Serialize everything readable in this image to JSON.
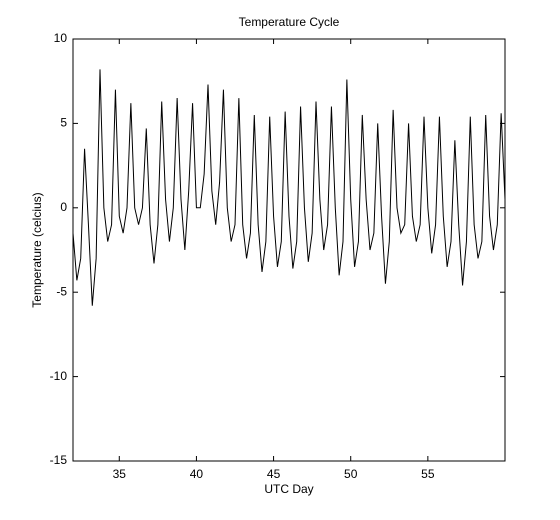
{
  "chart_data": {
    "type": "line",
    "title": "Temperature Cycle",
    "xlabel": "UTC Day",
    "ylabel": "Temperature (celcius)",
    "color": "#000000",
    "x": [
      32,
      32.25,
      32.5,
      32.75,
      33,
      33.25,
      33.5,
      33.75,
      34,
      34.25,
      34.5,
      34.75,
      35,
      35.25,
      35.5,
      35.75,
      36,
      36.25,
      36.5,
      36.75,
      37,
      37.25,
      37.5,
      37.75,
      38,
      38.25,
      38.5,
      38.75,
      39,
      39.25,
      39.5,
      39.75,
      40,
      40.25,
      40.5,
      40.75,
      41,
      41.25,
      41.5,
      41.75,
      42,
      42.25,
      42.5,
      42.75,
      43,
      43.25,
      43.5,
      43.75,
      44,
      44.25,
      44.5,
      44.75,
      45,
      45.25,
      45.5,
      45.75,
      46,
      46.25,
      46.5,
      46.75,
      47,
      47.25,
      47.5,
      47.75,
      48,
      48.25,
      48.5,
      48.75,
      49,
      49.25,
      49.5,
      49.75,
      50,
      50.25,
      50.5,
      50.75,
      51,
      51.25,
      51.5,
      51.75,
      52,
      52.25,
      52.5,
      52.75,
      53,
      53.25,
      53.5,
      53.75,
      54,
      54.25,
      54.5,
      54.75,
      55,
      55.25,
      55.5,
      55.75,
      56,
      56.25,
      56.5,
      56.75,
      57,
      57.25,
      57.5,
      57.75,
      58,
      58.25,
      58.5,
      58.75,
      59,
      59.25,
      59.5,
      59.75,
      60
    ],
    "values": [
      -1.5,
      -4.3,
      -3,
      3.5,
      -1,
      -5.8,
      -3,
      8.2,
      0,
      -2,
      -1,
      7,
      -0.5,
      -1.5,
      0,
      6.2,
      0,
      -1,
      0,
      4.7,
      -1,
      -3.3,
      -1,
      6.3,
      0.5,
      -2,
      0,
      6.5,
      0.5,
      -2.5,
      1,
      6.2,
      0,
      0,
      2,
      7.3,
      1,
      -1,
      1.5,
      7,
      0,
      -2,
      -1,
      6.5,
      -1,
      -3,
      -1.5,
      5.5,
      -1,
      -3.8,
      -2,
      5.4,
      -0.5,
      -3.5,
      -2,
      5.7,
      -0.5,
      -3.6,
      -2,
      6,
      0,
      -3.2,
      -1.5,
      6.3,
      0.5,
      -2.5,
      -1,
      6,
      0,
      -4,
      -2,
      7.6,
      0.5,
      -3.5,
      -2,
      5.5,
      0.5,
      -2.5,
      -1.5,
      5,
      -0.5,
      -4.5,
      -2,
      5.8,
      0,
      -1.5,
      -1,
      5,
      -0.5,
      -2,
      -1,
      5.4,
      0,
      -2.7,
      -1,
      5.4,
      -0.5,
      -3.5,
      -2,
      4,
      -1,
      -4.6,
      -2,
      5.4,
      -1,
      -3,
      -2,
      5.5,
      -0.5,
      -2.5,
      -1,
      5.6,
      0.5
    ],
    "xlim": [
      32,
      60
    ],
    "ylim": [
      -15,
      10
    ],
    "xticks": [
      35,
      40,
      45,
      50,
      55
    ],
    "yticks": [
      -15,
      -10,
      -5,
      0,
      5,
      10
    ],
    "grid": false
  }
}
